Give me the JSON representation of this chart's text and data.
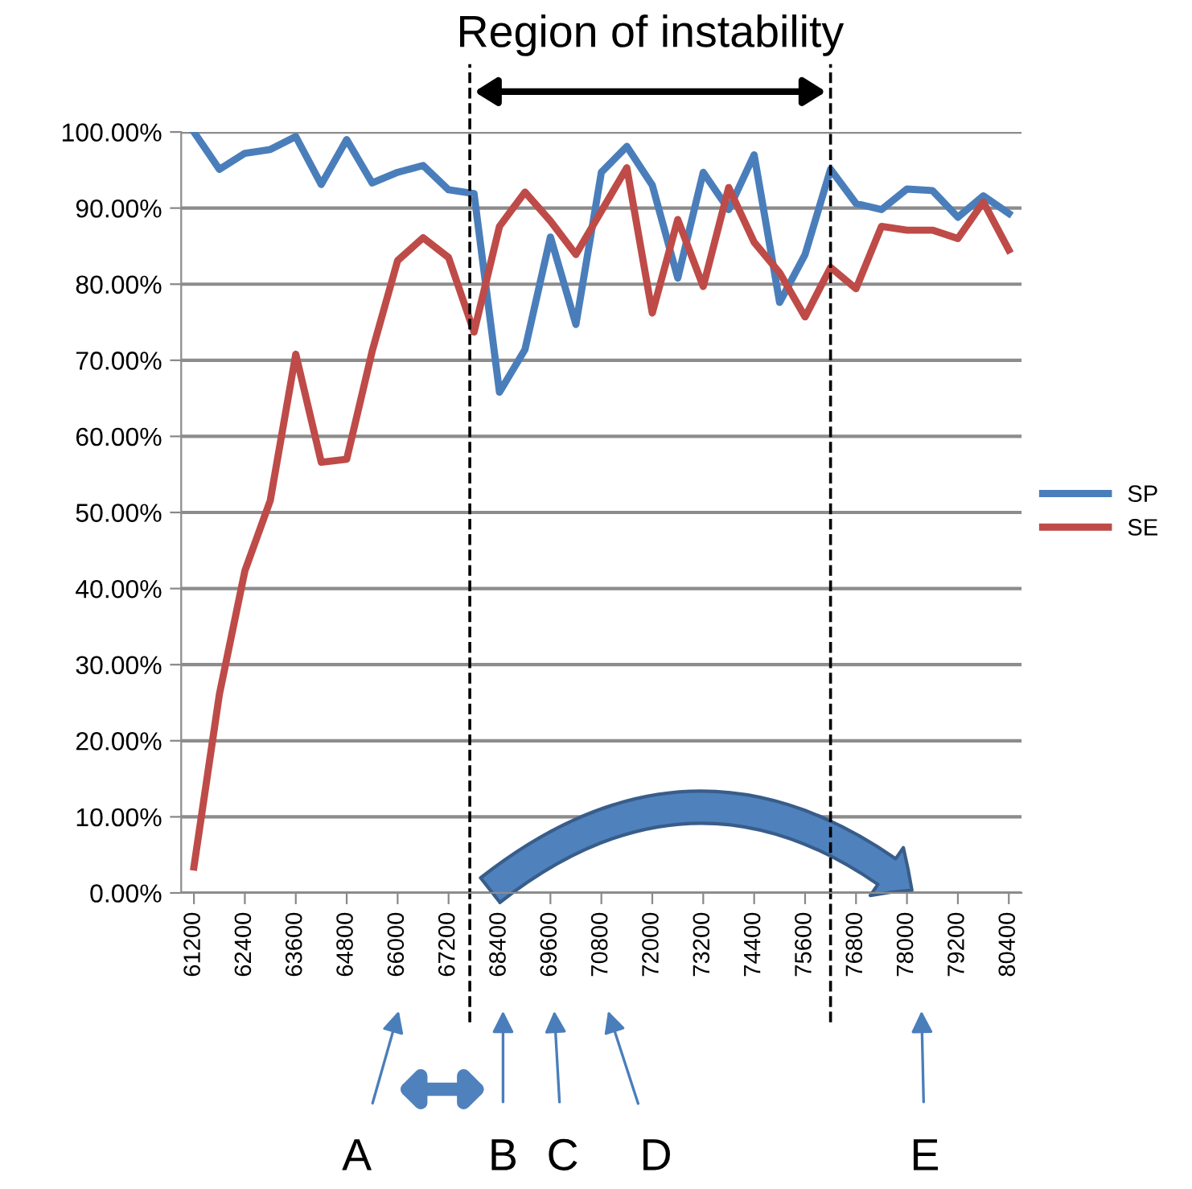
{
  "chart_data": {
    "type": "line",
    "x": [
      61200,
      61800,
      62400,
      63000,
      63600,
      64200,
      64800,
      65400,
      66000,
      66600,
      67200,
      67800,
      68400,
      69000,
      69600,
      70200,
      70800,
      71400,
      72000,
      72600,
      73200,
      73800,
      74400,
      75000,
      75600,
      76200,
      76800,
      77400,
      78000,
      78600,
      79200,
      79800,
      80400
    ],
    "series": [
      {
        "name": "SP",
        "color": "#4a7ebb",
        "values": [
          100.0,
          95.1,
          97.2,
          97.7,
          99.4,
          93.1,
          99.0,
          93.3,
          94.7,
          95.6,
          92.4,
          91.9,
          65.8,
          71.4,
          86.2,
          74.7,
          94.7,
          98.1,
          93.0,
          80.8,
          94.7,
          89.8,
          97.0,
          77.6,
          83.9,
          95.1,
          90.6,
          89.8,
          92.5,
          92.3,
          88.8,
          91.6,
          89.3
        ]
      },
      {
        "name": "SE",
        "color": "#be4b48",
        "values": [
          3.4,
          26.1,
          42.3,
          51.6,
          70.8,
          56.6,
          57.0,
          71.2,
          83.1,
          86.1,
          83.5,
          73.7,
          87.6,
          92.1,
          88.3,
          83.9,
          89.6,
          95.3,
          76.2,
          88.5,
          79.7,
          92.7,
          85.5,
          81.5,
          75.7,
          82.2,
          79.4,
          87.6,
          87.1,
          87.1,
          86.0,
          90.8,
          84.5
        ]
      }
    ],
    "xlim": [
      60900,
      80700
    ],
    "xticks": [
      61200,
      62400,
      63600,
      64800,
      66000,
      67200,
      68400,
      69600,
      70800,
      72000,
      73200,
      74400,
      75600,
      76800,
      78000,
      79200,
      80400
    ],
    "ylim": [
      0,
      100
    ],
    "yticks": [
      {
        "value": 0,
        "label": "0.00%"
      },
      {
        "value": 10,
        "label": "10.00%"
      },
      {
        "value": 20,
        "label": "20.00%"
      },
      {
        "value": 30,
        "label": "30.00%"
      },
      {
        "value": 40,
        "label": "40.00%"
      },
      {
        "value": 50,
        "label": "50.00%"
      },
      {
        "value": 60,
        "label": "60.00%"
      },
      {
        "value": 70,
        "label": "70.00%"
      },
      {
        "value": 80,
        "label": "80.00%"
      },
      {
        "value": 90,
        "label": "90.00%"
      },
      {
        "value": 100,
        "label": "100.00%"
      }
    ],
    "ref_lines": [
      {
        "axis": "x",
        "value": 67700,
        "color": "#000000",
        "line_style": "dashed"
      },
      {
        "axis": "x",
        "value": 76200,
        "color": "#000000",
        "line_style": "dashed"
      }
    ],
    "annotations": [
      "Region of instability",
      "A",
      "B",
      "C",
      "D",
      "E"
    ],
    "grid": "y",
    "legend": "right",
    "marker": "none",
    "line_style": "solid"
  }
}
